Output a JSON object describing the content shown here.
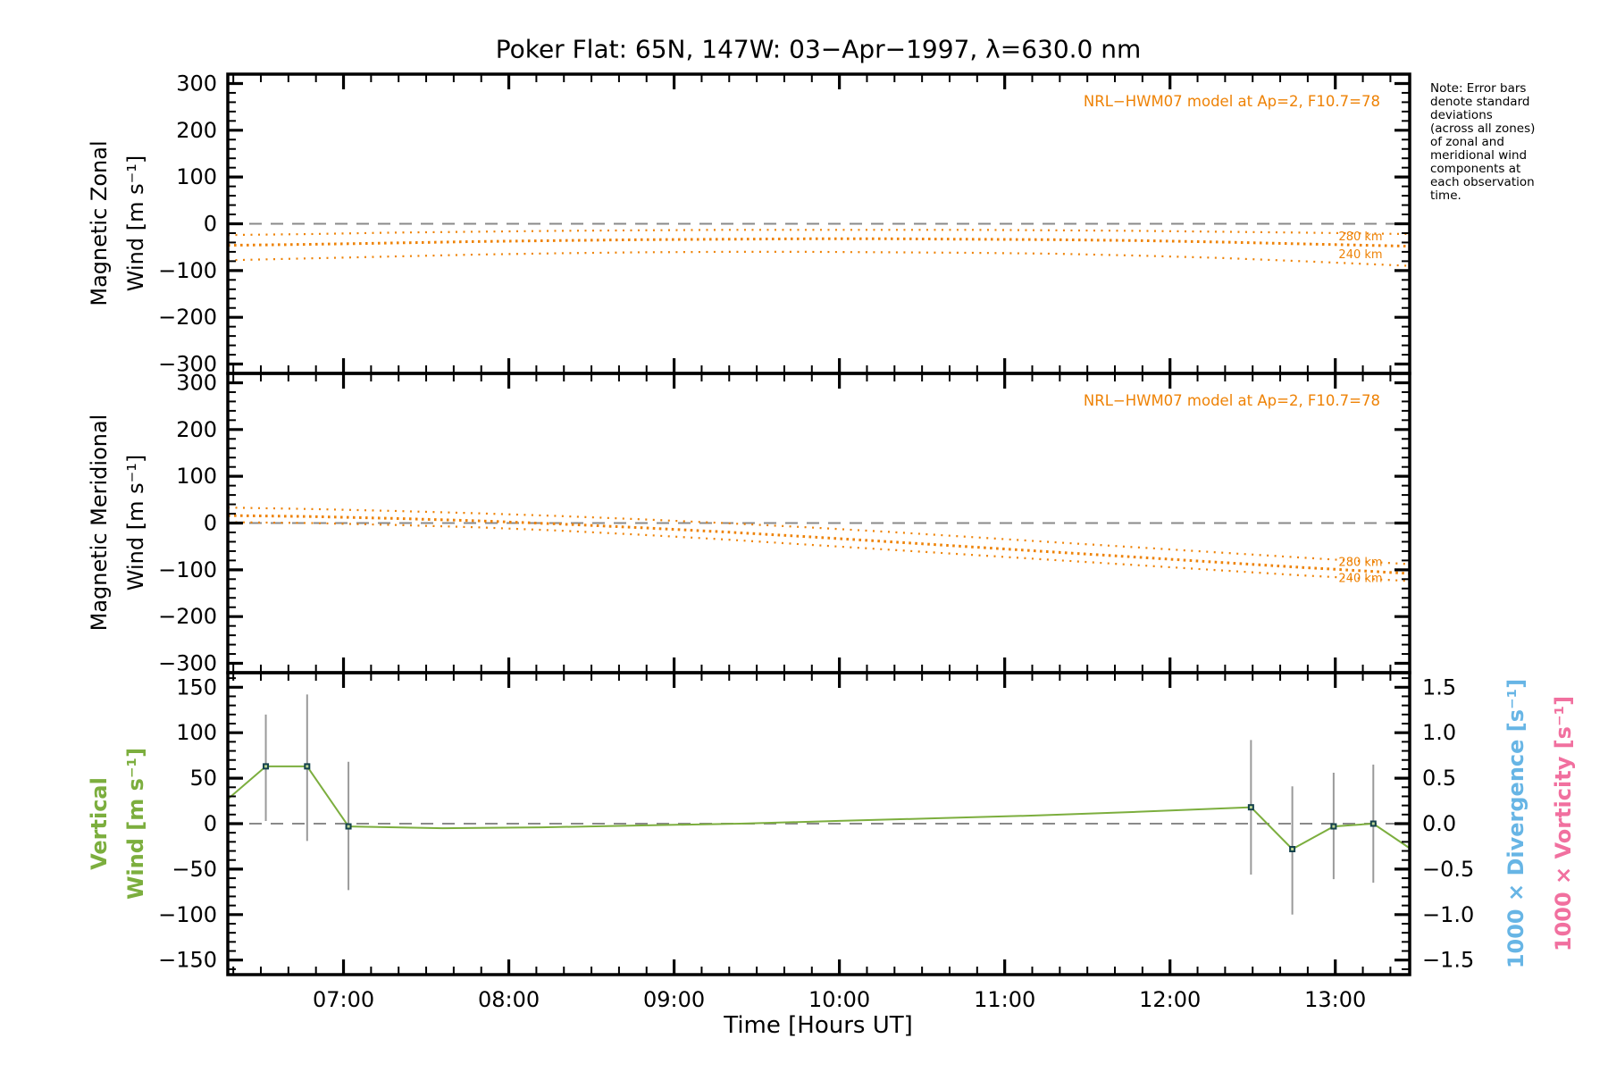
{
  "title": "Poker Flat: 65N, 147W: 03−Apr−1997, λ=630.0 nm",
  "note_lines": [
    "Note: Error bars",
    "denote standard",
    "deviations",
    "(across all zones)",
    "of zonal and",
    "meridional wind",
    "components at",
    "each observation",
    "time."
  ],
  "colors": {
    "model_orange": "#ee8205",
    "data_green": "#7cae3e",
    "marker_dark": "#14424c",
    "marker_center": "#bcd795",
    "error_gray": "#9a9a9a",
    "zero_dash_gray": "#8a8a8a",
    "divergence_blue": "#67b5e5",
    "vorticity_pink": "#f1709f",
    "axis_black": "#000000"
  },
  "x_axis": {
    "title": "Time [Hours UT]",
    "range": [
      6.3,
      13.45
    ],
    "major_tick_values": [
      7,
      8,
      9,
      10,
      11,
      12,
      13
    ],
    "major_tick_labels": [
      "07:00",
      "08:00",
      "09:00",
      "10:00",
      "11:00",
      "12:00",
      "13:00"
    ],
    "minor_per_hour": 6
  },
  "chart_data": [
    {
      "id": "magnetic-zonal-wind",
      "type": "line",
      "ylabel_lines": [
        "Magnetic Zonal",
        "Wind [m s⁻¹]"
      ],
      "ylim": [
        -320,
        320
      ],
      "ytick_values": [
        300,
        200,
        100,
        0,
        -100,
        -200,
        -300
      ],
      "ytick_labels": [
        "300",
        "200",
        "100",
        "0",
        "−100",
        "−200",
        "−300"
      ],
      "ytick_minor_step": 20,
      "annotation": "NRL−HWM07 model at Ap=2, F10.7=78",
      "model_series": {
        "x": [
          6.3,
          6.8,
          7.3,
          7.8,
          8.3,
          8.8,
          9.3,
          9.8,
          10.3,
          10.8,
          11.3,
          11.8,
          12.3,
          12.8,
          13.45
        ],
        "upper_sigma": [
          -24,
          -22,
          -19,
          -17,
          -15,
          -14,
          -13,
          -13,
          -13,
          -13,
          -14,
          -15,
          -17,
          -19,
          -22
        ],
        "mean": [
          -46,
          -44,
          -41,
          -38,
          -36,
          -34,
          -33,
          -32,
          -32,
          -33,
          -34,
          -36,
          -39,
          -43,
          -48
        ],
        "lower_sigma": [
          -78,
          -74,
          -70,
          -66,
          -63,
          -61,
          -60,
          -60,
          -61,
          -62,
          -64,
          -68,
          -73,
          -80,
          -90
        ]
      },
      "altitude_labels": [
        {
          "text": "280 km",
          "t": 13.02,
          "v": -28
        },
        {
          "text": "240 km",
          "t": 13.02,
          "v": -66
        }
      ]
    },
    {
      "id": "magnetic-meridional-wind",
      "type": "line",
      "ylabel_lines": [
        "Magnetic Meridional",
        "Wind [m s⁻¹]"
      ],
      "ylim": [
        -320,
        320
      ],
      "ytick_values": [
        300,
        200,
        100,
        0,
        -100,
        -200,
        -300
      ],
      "ytick_labels": [
        "300",
        "200",
        "100",
        "0",
        "−100",
        "−200",
        "−300"
      ],
      "ytick_minor_step": 20,
      "annotation": "NRL−HWM07 model at Ap=2, F10.7=78",
      "model_series": {
        "x": [
          6.3,
          6.8,
          7.3,
          7.8,
          8.3,
          8.8,
          9.3,
          9.8,
          10.3,
          10.8,
          11.3,
          11.8,
          12.3,
          12.8,
          13.45
        ],
        "upper_sigma": [
          33,
          30,
          26,
          21,
          15,
          8,
          0,
          -9,
          -19,
          -30,
          -41,
          -52,
          -63,
          -74,
          -88
        ],
        "mean": [
          16,
          14,
          10,
          5,
          -2,
          -10,
          -19,
          -29,
          -40,
          -51,
          -62,
          -73,
          -84,
          -95,
          -108
        ],
        "lower_sigma": [
          2,
          0,
          -4,
          -9,
          -16,
          -25,
          -35,
          -46,
          -57,
          -68,
          -79,
          -90,
          -101,
          -112,
          -124
        ]
      },
      "altitude_labels": [
        {
          "text": "280 km",
          "t": 13.02,
          "v": -84
        },
        {
          "text": "240 km",
          "t": 13.02,
          "v": -118
        }
      ]
    },
    {
      "id": "vertical-wind",
      "type": "line-errorbars",
      "ylabel_lines": [
        "Vertical",
        "Wind [m s⁻¹]"
      ],
      "ylim": [
        -166,
        166
      ],
      "ytick_values": [
        150,
        100,
        50,
        0,
        -50,
        -100,
        -150
      ],
      "ytick_labels": [
        "150",
        "100",
        "50",
        "0",
        "−50",
        "−100",
        "−150"
      ],
      "ytick_minor_step": 10,
      "right_axis": {
        "divergence_label": "1000 × Divergence [s⁻¹]",
        "vorticity_label": "1000 × Vorticity [s⁻¹]",
        "ylim": [
          -1.66,
          1.66
        ],
        "ytick_values": [
          1.5,
          1.0,
          0.5,
          0.0,
          -0.5,
          -1.0,
          -1.5
        ],
        "ytick_labels": [
          "1.5",
          "1.0",
          "0.5",
          "0.0",
          "−0.5",
          "−1.0",
          "−1.5"
        ],
        "ytick_minor_step": 0.1
      },
      "line_points": [
        [
          6.3,
          27
        ],
        [
          6.53,
          63
        ],
        [
          6.78,
          63
        ],
        [
          7.03,
          -3
        ],
        [
          7.6,
          -5
        ],
        [
          8.2,
          -4
        ],
        [
          8.8,
          -2
        ],
        [
          9.4,
          0
        ],
        [
          10.0,
          3
        ],
        [
          10.6,
          6
        ],
        [
          11.2,
          9
        ],
        [
          11.8,
          13
        ],
        [
          12.49,
          18
        ],
        [
          12.74,
          -28
        ],
        [
          12.99,
          -3
        ],
        [
          13.23,
          0
        ],
        [
          13.45,
          -27
        ]
      ],
      "data_points": [
        {
          "t": 6.53,
          "v": 63,
          "err_lo": 3,
          "err_hi": 120
        },
        {
          "t": 6.78,
          "v": 63,
          "err_lo": -19,
          "err_hi": 142
        },
        {
          "t": 7.03,
          "v": -3,
          "err_lo": -73,
          "err_hi": 68
        },
        {
          "t": 12.49,
          "v": 18,
          "err_lo": -56,
          "err_hi": 92
        },
        {
          "t": 12.74,
          "v": -28,
          "err_lo": -100,
          "err_hi": 41
        },
        {
          "t": 12.99,
          "v": -3,
          "err_lo": -61,
          "err_hi": 56
        },
        {
          "t": 13.23,
          "v": 0,
          "err_lo": -65,
          "err_hi": 65
        }
      ]
    }
  ]
}
